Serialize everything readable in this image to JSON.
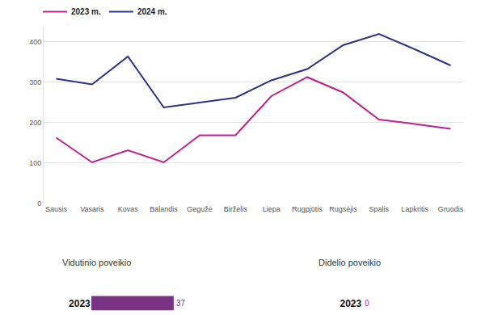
{
  "chart_data": [
    {
      "type": "line",
      "categories": [
        "Sausis",
        "Vasaris",
        "Kovas",
        "Balandis",
        "Gegužė",
        "Birželis",
        "Liepa",
        "Rugpjūtis",
        "Rugsėjis",
        "Spalis",
        "Lapkritis",
        "Gruodis"
      ],
      "series": [
        {
          "name": "2023 m.",
          "color": "#c0208c",
          "values": [
            163,
            102,
            132,
            102,
            169,
            169,
            266,
            313,
            275,
            208,
            197,
            185
          ]
        },
        {
          "name": "2024 m.",
          "color": "#2d3282",
          "values": [
            309,
            295,
            364,
            238,
            250,
            262,
            305,
            333,
            392,
            420,
            382,
            342
          ]
        }
      ],
      "ylim": [
        0,
        440
      ],
      "yticks": [
        0,
        100,
        200,
        300,
        400
      ],
      "grid": true,
      "legend": "top-left"
    },
    {
      "type": "bar",
      "title": "Vidutinio poveikio",
      "orientation": "horizontal",
      "categories": [
        "2023"
      ],
      "values": [
        37
      ],
      "color": "#7a3384",
      "xlim": [
        0,
        40
      ],
      "data_labels": true,
      "tick_labels": "y"
    },
    {
      "type": "bar",
      "title": "Didelio poveikio",
      "orientation": "horizontal",
      "categories": [
        "2023"
      ],
      "values": [
        0
      ],
      "color": "#d8308c",
      "xlim": [
        0,
        40
      ],
      "data_labels": true,
      "tick_labels": "y"
    }
  ]
}
